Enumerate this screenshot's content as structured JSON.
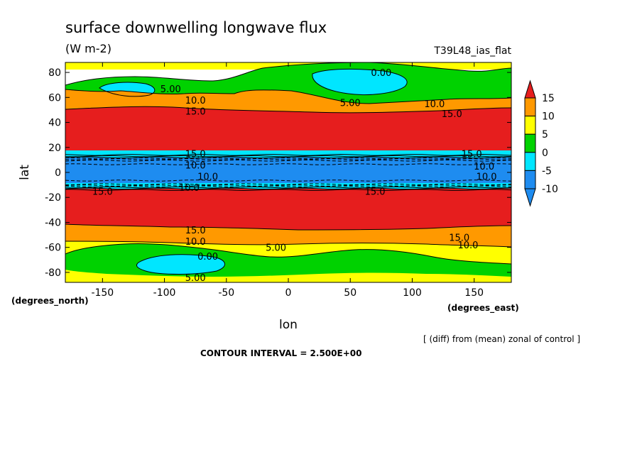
{
  "chart_data": {
    "type": "heatmap",
    "title": "surface downwelling longwave flux",
    "units": "(W m-2)",
    "experiment": "T39L48_ias_flat",
    "xlabel": "lon",
    "ylabel": "lat",
    "x_units": "(degrees_east)",
    "y_units": "(degrees_north)",
    "xlim": [
      -180,
      180
    ],
    "ylim": [
      -88,
      88
    ],
    "x_ticks": [
      -150,
      -100,
      -50,
      0,
      50,
      100,
      150
    ],
    "y_ticks": [
      -80,
      -60,
      -40,
      -20,
      0,
      20,
      40,
      60,
      80
    ],
    "x_tick_labels": [
      "-150",
      "-100",
      "-50",
      "0",
      "50",
      "100",
      "150"
    ],
    "y_tick_labels": [
      "-80",
      "-60",
      "-40",
      "-20",
      "0",
      "20",
      "40",
      "60",
      "80"
    ],
    "colorbar": {
      "levels": [
        -10,
        -5,
        0,
        5,
        10,
        15
      ],
      "labels": [
        "15",
        "10",
        "5",
        "0",
        "-5",
        "-10"
      ],
      "colors": [
        "#1e8cf0",
        "#00e6ff",
        "#00d200",
        "#ffff00",
        "#ff9900",
        "#e61e1e"
      ]
    },
    "contour_interval": "CONTOUR INTERVAL = 2.500E+00",
    "note": "[ (diff) from (mean) zonal of control ]",
    "zonal_bands": [
      {
        "lat_from": 80,
        "lat_to": 88,
        "class": "5 to 10"
      },
      {
        "lat_from": 58,
        "lat_to": 80,
        "class": "0 to 5"
      },
      {
        "lat_from": 48,
        "lat_to": 58,
        "class": "10 to 15"
      },
      {
        "lat_from": 14,
        "lat_to": 48,
        "class": ">15"
      },
      {
        "lat_from": 10,
        "lat_to": 14,
        "class": "0 to -5"
      },
      {
        "lat_from": -10,
        "lat_to": 10,
        "class": "<-10"
      },
      {
        "lat_from": -14,
        "lat_to": -10,
        "class": "0 to -5"
      },
      {
        "lat_from": -42,
        "lat_to": -14,
        "class": ">15"
      },
      {
        "lat_from": -52,
        "lat_to": -42,
        "class": "10 to 15"
      },
      {
        "lat_from": -62,
        "lat_to": -52,
        "class": "5 to 10"
      },
      {
        "lat_from": -80,
        "lat_to": -62,
        "class": "0 to 5"
      },
      {
        "lat_from": -88,
        "lat_to": -80,
        "class": "5 to 10"
      }
    ],
    "contour_labels": [
      {
        "text": "5.00",
        "lon": -95,
        "lat": 67
      },
      {
        "text": "0.00",
        "lon": 75,
        "lat": 80
      },
      {
        "text": "10.0",
        "lon": -75,
        "lat": 58
      },
      {
        "text": "15.0",
        "lon": -75,
        "lat": 49
      },
      {
        "text": "5.00",
        "lon": 50,
        "lat": 56
      },
      {
        "text": "10.0",
        "lon": 118,
        "lat": 55
      },
      {
        "text": "15.0",
        "lon": 132,
        "lat": 47
      },
      {
        "text": "15.0",
        "lon": -75,
        "lat": 15
      },
      {
        "text": "10.0",
        "lon": -75,
        "lat": 6
      },
      {
        "text": "15.0",
        "lon": 148,
        "lat": 15
      },
      {
        "text": "10.0",
        "lon": 158,
        "lat": 5
      },
      {
        "text": "10.0",
        "lon": -65,
        "lat": -3
      },
      {
        "text": "10.0",
        "lon": 160,
        "lat": -3
      },
      {
        "text": "15.0",
        "lon": -150,
        "lat": -15
      },
      {
        "text": "10.0",
        "lon": -80,
        "lat": -12
      },
      {
        "text": "15.0",
        "lon": 70,
        "lat": -15
      },
      {
        "text": "15.0",
        "lon": -75,
        "lat": -46
      },
      {
        "text": "10.0",
        "lon": -75,
        "lat": -55
      },
      {
        "text": "5.00",
        "lon": -10,
        "lat": -60
      },
      {
        "text": "0.00",
        "lon": -65,
        "lat": -67
      },
      {
        "text": "15.0",
        "lon": 138,
        "lat": -52
      },
      {
        "text": "10.0",
        "lon": 145,
        "lat": -58
      },
      {
        "text": "5.00",
        "lon": -75,
        "lat": -84
      }
    ]
  }
}
